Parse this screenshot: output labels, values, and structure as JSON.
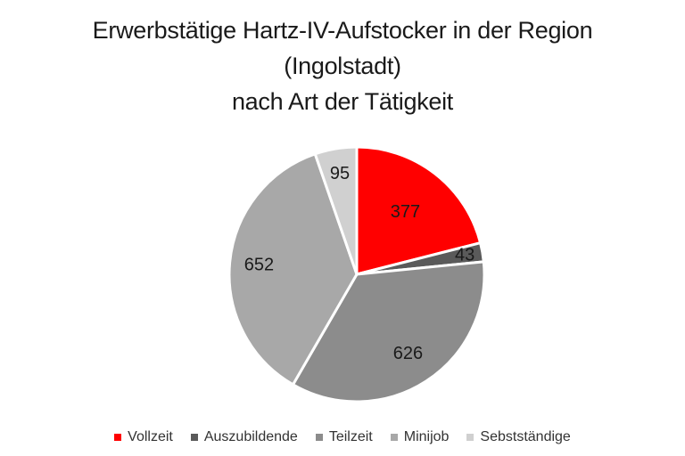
{
  "chart_data": {
    "type": "pie",
    "title_lines": [
      "Erwerbstätige Hartz-IV-Aufstocker in der Region",
      "(Ingolstadt)",
      "nach Art der Tätigkeit"
    ],
    "slices": [
      {
        "label": "Vollzeit",
        "value": 377,
        "color": "#ff0000"
      },
      {
        "label": "Auszubildende",
        "value": 43,
        "color": "#5a5a5a"
      },
      {
        "label": "Teilzeit",
        "value": 626,
        "color": "#8c8c8c"
      },
      {
        "label": "Minijob",
        "value": 652,
        "color": "#a8a8a8"
      },
      {
        "label": "Sebstständige",
        "value": 95,
        "color": "#d0d0d0"
      }
    ],
    "legend_position": "bottom",
    "start_angle": "12-o-clock",
    "direction": "clockwise"
  }
}
